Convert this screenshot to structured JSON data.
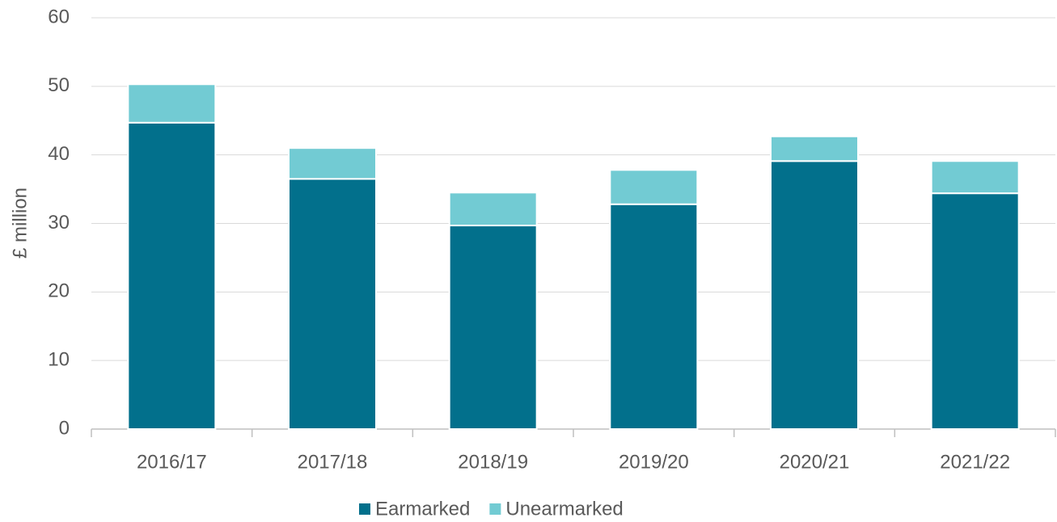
{
  "chart_data": {
    "type": "stacked_bar",
    "y_label": "£ million",
    "categories": [
      "2016/17",
      "2017/18",
      "2018/19",
      "2019/20",
      "2020/21",
      "2021/22"
    ],
    "series": [
      {
        "name": "Earmarked",
        "color": "#02708c",
        "values": [
          44.7,
          36.5,
          29.7,
          32.8,
          39.1,
          34.4
        ]
      },
      {
        "name": "Unearmarked",
        "color": "#72cbd3",
        "values": [
          5.6,
          4.5,
          4.8,
          5.0,
          3.6,
          4.7
        ]
      }
    ],
    "ylim": [
      0,
      60
    ],
    "yticks": [
      0,
      10,
      20,
      30,
      40,
      50,
      60
    ],
    "grid": true,
    "legend": "bottom"
  }
}
